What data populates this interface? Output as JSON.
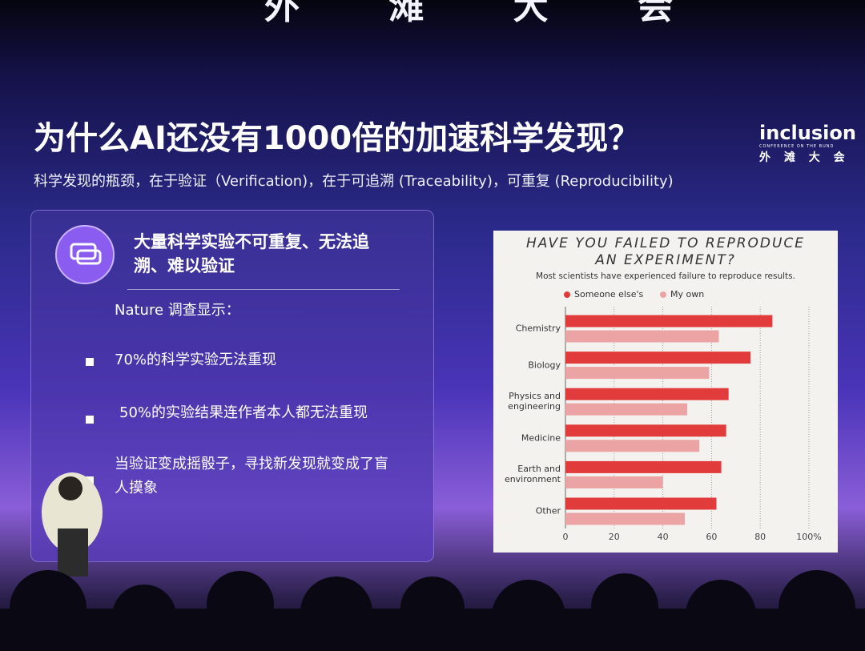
{
  "stage_banner": "外 滩 大 会",
  "slide": {
    "title": "为什么AI还没有1000倍的加速科学发现？",
    "subtitle": "科学发现的瓶颈，在于验证（Verification)，在于可追溯 (Traceability)，可重复 (Reproducibility)",
    "logo": {
      "name": "inclusion",
      "tagline": "CONFERENCE ON THE BUND",
      "cn": "外 滩 大 会"
    },
    "panel": {
      "heading": "大量科学实验不可重复、无法追溯、难以验证",
      "intro": "Nature 调查显示：",
      "bullets": [
        "70%的科学实验无法重现",
        "50%的实验结果连作者本人都无法重现",
        "当验证变成摇骰子，寻找新发现就变成了盲人摸象"
      ]
    }
  },
  "chart_data": {
    "type": "bar",
    "orientation": "horizontal",
    "title": "HAVE YOU FAILED TO REPRODUCE AN EXPERIMENT?",
    "subtitle": "Most scientists have experienced failure to reproduce results.",
    "categories": [
      "Chemistry",
      "Biology",
      "Physics and engineering",
      "Medicine",
      "Earth and environment",
      "Other"
    ],
    "series": [
      {
        "name": "Someone else's",
        "color": "#e23b3b",
        "values": [
          85,
          76,
          67,
          66,
          64,
          62
        ]
      },
      {
        "name": "My own",
        "color": "#eba3a3",
        "values": [
          63,
          59,
          50,
          55,
          40,
          49
        ]
      }
    ],
    "xlim": [
      0,
      100
    ],
    "xticks": [
      0,
      20,
      40,
      60,
      80,
      {
        "value": 100,
        "label": "100%"
      }
    ],
    "grid": true,
    "legend": "top-left"
  }
}
